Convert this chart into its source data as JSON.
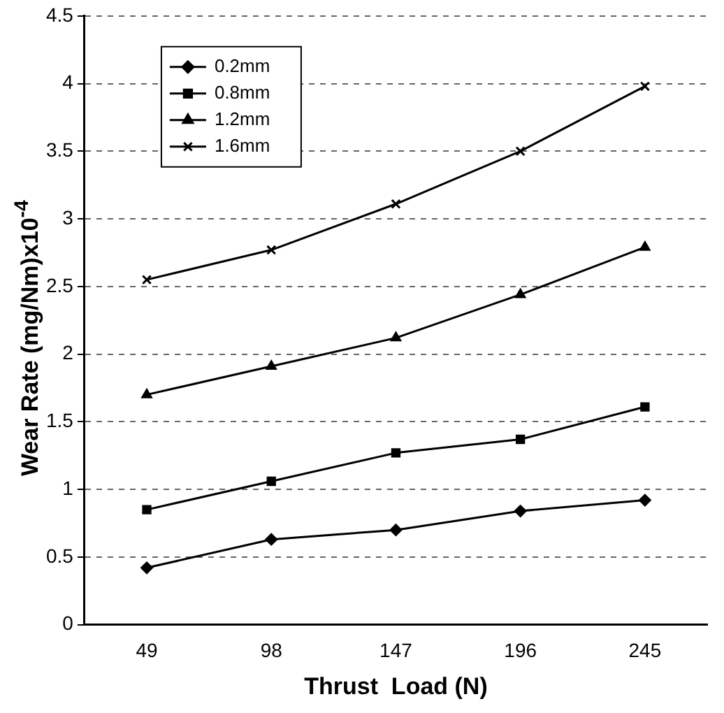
{
  "chart_data": {
    "type": "line",
    "xlabel": "Thrust  Load (N)",
    "ylabel": "Wear  Rate (mg/Nm)x10$^{-4}$",
    "categories": [
      "49",
      "98",
      "147",
      "196",
      "245"
    ],
    "ylim": [
      0,
      4.5
    ],
    "yticks": [
      0,
      0.5,
      1,
      1.5,
      2,
      2.5,
      3,
      3.5,
      4,
      4.5
    ],
    "grid": "y",
    "legend": "top left",
    "line_style": "solid",
    "series": [
      {
        "name": "0.2mm",
        "color": "#000000",
        "marker": "diamond",
        "values": [
          0.42,
          0.63,
          0.7,
          0.84,
          0.92
        ]
      },
      {
        "name": "0.8mm",
        "color": "#000000",
        "marker": "square",
        "values": [
          0.85,
          1.06,
          1.27,
          1.37,
          1.61
        ]
      },
      {
        "name": "1.2mm",
        "color": "#000000",
        "marker": "triangle",
        "values": [
          1.7,
          1.91,
          2.12,
          2.44,
          2.79
        ]
      },
      {
        "name": "1.6mm",
        "color": "#000000",
        "marker": "cross",
        "values": [
          2.55,
          2.77,
          3.11,
          3.5,
          3.98
        ]
      }
    ]
  }
}
